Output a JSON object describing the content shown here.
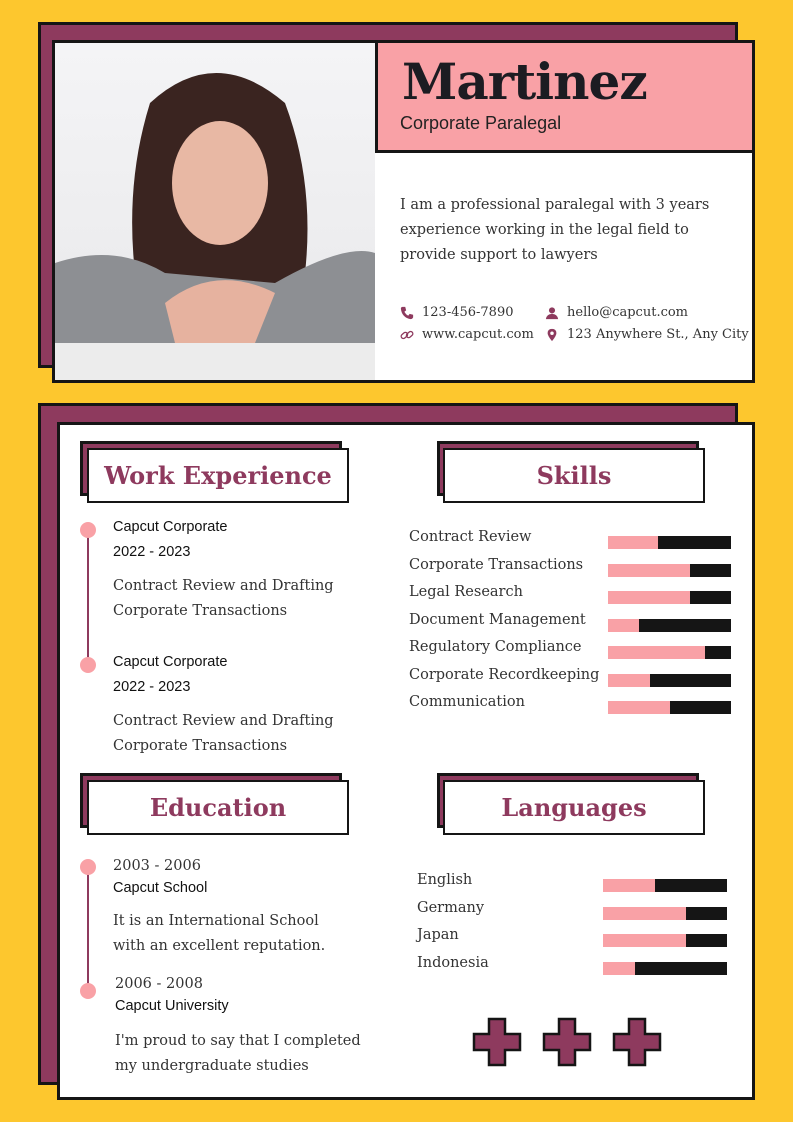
{
  "colors": {
    "background": "#FDC72E",
    "accent": "#8E3A5E",
    "pink": "#F9A1A6",
    "dark": "#151515"
  },
  "header": {
    "name": "Martinez",
    "role": "Corporate Paralegal",
    "bio": "I am a professional paralegal with 3 years experience working in the legal field to provide support to lawyers"
  },
  "contact": {
    "phone": "123-456-7890",
    "email": "hello@capcut.com",
    "website": "www.capcut.com",
    "address": "123 Anywhere St., Any City"
  },
  "work": {
    "title": "Work Experience",
    "items": [
      {
        "company": "Capcut Corporate",
        "years": "2022 - 2023",
        "line1": "Contract Review and Drafting",
        "line2": "Corporate Transactions"
      },
      {
        "company": "Capcut Corporate",
        "years": "2022 - 2023",
        "line1": "Contract Review and Drafting",
        "line2": "Corporate Transactions"
      }
    ]
  },
  "skills": {
    "title": "Skills",
    "items": [
      {
        "label": "Contract Review",
        "level": 0.41
      },
      {
        "label": "Corporate Transactions",
        "level": 0.67
      },
      {
        "label": "Legal Research",
        "level": 0.67
      },
      {
        "label": "Document Management",
        "level": 0.25
      },
      {
        "label": "Regulatory Compliance",
        "level": 0.79
      },
      {
        "label": "Corporate Recordkeeping",
        "level": 0.34
      },
      {
        "label": "Communication",
        "level": 0.5
      }
    ]
  },
  "education": {
    "title": "Education",
    "items": [
      {
        "years": "2003 - 2006",
        "school": "Capcut School",
        "line1": "It is an International School",
        "line2": "with an excellent reputation."
      },
      {
        "years": "2006 - 2008",
        "school": "Capcut University",
        "line1": "I'm proud to say that I completed",
        "line2": "my undergraduate studies"
      }
    ]
  },
  "languages": {
    "title": "Languages",
    "items": [
      {
        "label": "English",
        "level": 0.42
      },
      {
        "label": "Germany",
        "level": 0.67
      },
      {
        "label": "Japan",
        "level": 0.67
      },
      {
        "label": "Indonesia",
        "level": 0.26
      }
    ]
  },
  "decor": {
    "icons": [
      "plus-icon",
      "plus-icon",
      "plus-icon"
    ]
  }
}
